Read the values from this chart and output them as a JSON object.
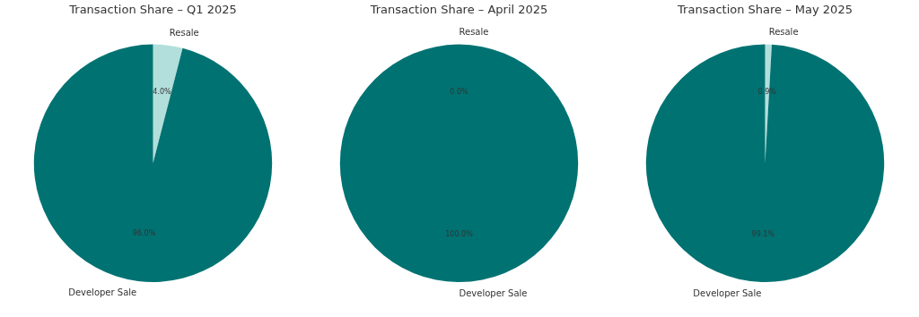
{
  "chart_data": [
    {
      "type": "pie",
      "title": "Transaction Share – Q1 2025",
      "categories": [
        "Resale",
        "Developer Sale"
      ],
      "values": [
        4.0,
        96.0
      ],
      "colors": [
        "#b2dfdb",
        "#007272"
      ],
      "value_labels": [
        "4.0%",
        "96.0%"
      ],
      "legend": false
    },
    {
      "type": "pie",
      "title": "Transaction Share – April 2025",
      "categories": [
        "Resale",
        "Developer Sale"
      ],
      "values": [
        0.0,
        100.0
      ],
      "colors": [
        "#b2dfdb",
        "#007272"
      ],
      "value_labels": [
        "0.0%",
        "100.0%"
      ],
      "legend": false
    },
    {
      "type": "pie",
      "title": "Transaction Share – May 2025",
      "categories": [
        "Resale",
        "Developer Sale"
      ],
      "values": [
        0.9,
        99.1
      ],
      "colors": [
        "#b2dfdb",
        "#007272"
      ],
      "value_labels": [
        "0.9%",
        "99.1%"
      ],
      "legend": false
    }
  ]
}
